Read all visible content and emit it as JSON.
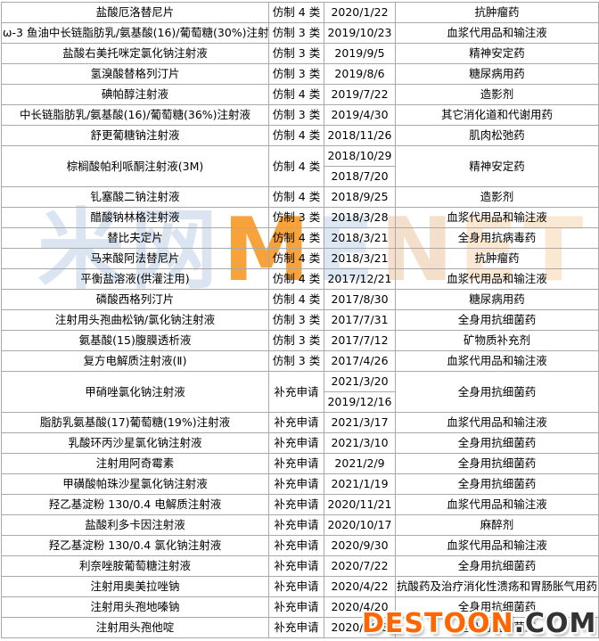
{
  "colors": {
    "table_border": "#a9a9a9",
    "table_text": "#000000"
  },
  "table": {
    "rows": [
      {
        "name": "盐酸厄洛替尼片",
        "category": "仿制 4 类",
        "dates": [
          "2020/1/22"
        ],
        "drug_class": "抗肿瘤药"
      },
      {
        "name": "ω-3 鱼油中长链脂肪乳/氨基酸(16)/葡萄糖(30%)注射液",
        "category": "仿制 3 类",
        "dates": [
          "2019/10/23"
        ],
        "drug_class": "血浆代用品和输注液"
      },
      {
        "name": "盐酸右美托咪定氯化钠注射液",
        "category": "仿制 3 类",
        "dates": [
          "2019/9/5"
        ],
        "drug_class": "精神安定药"
      },
      {
        "name": "氢溴酸替格列汀片",
        "category": "仿制 3 类",
        "dates": [
          "2019/8/6"
        ],
        "drug_class": "糖尿病用药"
      },
      {
        "name": "碘帕醇注射液",
        "category": "仿制 4 类",
        "dates": [
          "2019/7/22"
        ],
        "drug_class": "造影剂"
      },
      {
        "name": "中长链脂肪乳/氨基酸(16)/葡萄糖(36%)注射液",
        "category": "仿制 3 类",
        "dates": [
          "2019/4/30"
        ],
        "drug_class": "其它消化道和代谢用药"
      },
      {
        "name": "舒更葡糖钠注射液",
        "category": "仿制 4 类",
        "dates": [
          "2018/11/26"
        ],
        "drug_class": "肌肉松弛药"
      },
      {
        "name": "棕榈酸帕利哌酮注射液(3M)",
        "category": "仿制 4 类",
        "dates": [
          "2018/10/29",
          "2018/7/20"
        ],
        "drug_class": "精神安定药"
      },
      {
        "name": "钆塞酸二钠注射液",
        "category": "仿制 4 类",
        "dates": [
          "2018/9/25"
        ],
        "drug_class": "造影剂"
      },
      {
        "name": "醋酸钠林格注射液",
        "category": "仿制 3 类",
        "dates": [
          "2018/3/28"
        ],
        "drug_class": "血浆代用品和输注液"
      },
      {
        "name": "替比夫定片",
        "category": "仿制 4 类",
        "dates": [
          "2018/3/21"
        ],
        "drug_class": "全身用抗病毒药"
      },
      {
        "name": "马来酸阿法替尼片",
        "category": "仿制 4 类",
        "dates": [
          "2018/3/21"
        ],
        "drug_class": "抗肿瘤药"
      },
      {
        "name": "平衡盐溶液(供灌注用)",
        "category": "仿制 4 类",
        "dates": [
          "2017/12/21"
        ],
        "drug_class": "血浆代用品和输注液"
      },
      {
        "name": "磷酸西格列汀片",
        "category": "仿制 4 类",
        "dates": [
          "2017/8/30"
        ],
        "drug_class": "糖尿病用药"
      },
      {
        "name": "注射用头孢曲松钠/氯化钠注射液",
        "category": "仿制 3 类",
        "dates": [
          "2017/7/31"
        ],
        "drug_class": "全身用抗细菌药"
      },
      {
        "name": "氨基酸(15)腹膜透析液",
        "category": "仿制 3 类",
        "dates": [
          "2017/7/12"
        ],
        "drug_class": "矿物质补充剂"
      },
      {
        "name": "复方电解质注射液(Ⅱ)",
        "category": "仿制 3 类",
        "dates": [
          "2017/4/26"
        ],
        "drug_class": "血浆代用品和输注液"
      },
      {
        "name": "甲硝唑氯化钠注射液",
        "category": "补充申请",
        "dates": [
          "2021/3/20",
          "2019/12/16"
        ],
        "drug_class": "全身用抗细菌药"
      },
      {
        "name": "脂肪乳氨基酸(17)葡萄糖(19%)注射液",
        "category": "补充申请",
        "dates": [
          "2021/3/17"
        ],
        "drug_class": "血浆代用品和输注液"
      },
      {
        "name": "乳酸环丙沙星氯化钠注射液",
        "category": "补充申请",
        "dates": [
          "2021/3/10"
        ],
        "drug_class": "全身用抗细菌药"
      },
      {
        "name": "注射用阿奇霉素",
        "category": "补充申请",
        "dates": [
          "2021/2/9"
        ],
        "drug_class": "全身用抗细菌药"
      },
      {
        "name": "甲磺酸帕珠沙星氯化钠注射液",
        "category": "补充申请",
        "dates": [
          "2021/1/19"
        ],
        "drug_class": "全身用抗细菌药"
      },
      {
        "name": "羟乙基淀粉 130/0.4 电解质注射液",
        "category": "补充申请",
        "dates": [
          "2020/11/21"
        ],
        "drug_class": "血浆代用品和输注液"
      },
      {
        "name": "盐酸利多卡因注射液",
        "category": "补充申请",
        "dates": [
          "2020/10/17"
        ],
        "drug_class": "麻醉剂"
      },
      {
        "name": "羟乙基淀粉 130/0.4 氯化钠注射液",
        "category": "补充申请",
        "dates": [
          "2020/9/30"
        ],
        "drug_class": "血浆代用品和输注液"
      },
      {
        "name": "利奈唑胺葡萄糖注射液",
        "category": "补充申请",
        "dates": [
          "2020/7/22"
        ],
        "drug_class": "全身用抗细菌药"
      },
      {
        "name": "注射用奥美拉唑钠",
        "category": "补充申请",
        "dates": [
          "2020/4/22"
        ],
        "drug_class": "抗酸药及治疗消化性溃疡和胃肠胀气用药"
      },
      {
        "name": "注射用头孢地嗪钠",
        "category": "补充申请",
        "dates": [
          "2020/4/20"
        ],
        "drug_class": "全身用抗细菌药"
      },
      {
        "name": "注射用头孢他啶",
        "category": "补充申请",
        "dates": [
          "2020/2/18"
        ],
        "drug_class": "全身用抗细菌药"
      }
    ]
  },
  "watermarks": {
    "menet": {
      "parts": [
        {
          "text": "米网",
          "color": "#dbe5f2"
        },
        {
          "text": "M",
          "color": "#f8a23c"
        },
        {
          "text": "E",
          "color": "#dce7f3"
        },
        {
          "text": "N",
          "color": "#f3dfca"
        },
        {
          "text": "ET",
          "color": "#fbe8d2"
        }
      ]
    },
    "destoon": {
      "main": "DESTOON",
      "suffix": ".COM",
      "main_color": "#ff6600",
      "suffix_color": "#333333"
    }
  }
}
